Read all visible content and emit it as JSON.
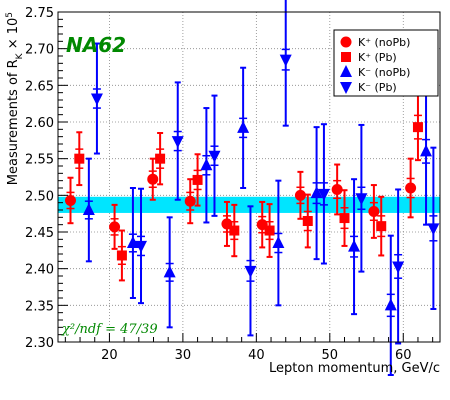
{
  "chart_data": {
    "type": "scatter",
    "title": "",
    "experiment_label": "NA62",
    "fit_label": "χ²/ndf = 47/39",
    "xlabel": "Lepton momentum, GeV/c",
    "ylabel": "Measurements of R_K × 10^5",
    "xlim": [
      13,
      65
    ],
    "ylim": [
      2.3,
      2.75
    ],
    "xticks": [
      20,
      30,
      40,
      50,
      60
    ],
    "yticks": [
      2.3,
      2.35,
      2.4,
      2.45,
      2.5,
      2.55,
      2.6,
      2.65,
      2.7,
      2.75
    ],
    "grid": true,
    "legend_position": "top-right",
    "band": {
      "center": 2.487,
      "low": 2.476,
      "high": 2.498,
      "color": "#00e5ff"
    },
    "series": [
      {
        "name": "K⁺ (noPb)",
        "marker": "circle",
        "color": "#ff0000",
        "points": [
          {
            "x": 14.7,
            "y": 2.493,
            "stat": 0.031,
            "syst": 0.011
          },
          {
            "x": 20.7,
            "y": 2.457,
            "stat": 0.03,
            "syst": 0.011
          },
          {
            "x": 25.9,
            "y": 2.522,
            "stat": 0.028,
            "syst": 0.011
          },
          {
            "x": 31.0,
            "y": 2.492,
            "stat": 0.03,
            "syst": 0.012
          },
          {
            "x": 36.0,
            "y": 2.461,
            "stat": 0.03,
            "syst": 0.011
          },
          {
            "x": 40.8,
            "y": 2.46,
            "stat": 0.031,
            "syst": 0.011
          },
          {
            "x": 46.0,
            "y": 2.5,
            "stat": 0.032,
            "syst": 0.011
          },
          {
            "x": 51.0,
            "y": 2.508,
            "stat": 0.034,
            "syst": 0.012
          },
          {
            "x": 56.0,
            "y": 2.478,
            "stat": 0.036,
            "syst": 0.012
          },
          {
            "x": 61.0,
            "y": 2.51,
            "stat": 0.04,
            "syst": 0.013
          }
        ]
      },
      {
        "name": "K⁺ (Pb)",
        "marker": "square",
        "color": "#ff0000",
        "points": [
          {
            "x": 15.9,
            "y": 2.55,
            "stat": 0.036,
            "syst": 0.013
          },
          {
            "x": 21.7,
            "y": 2.418,
            "stat": 0.034,
            "syst": 0.012
          },
          {
            "x": 26.9,
            "y": 2.55,
            "stat": 0.035,
            "syst": 0.013
          },
          {
            "x": 32.0,
            "y": 2.521,
            "stat": 0.035,
            "syst": 0.013
          },
          {
            "x": 37.0,
            "y": 2.452,
            "stat": 0.035,
            "syst": 0.012
          },
          {
            "x": 41.8,
            "y": 2.452,
            "stat": 0.036,
            "syst": 0.012
          },
          {
            "x": 47.0,
            "y": 2.465,
            "stat": 0.036,
            "syst": 0.013
          },
          {
            "x": 52.0,
            "y": 2.469,
            "stat": 0.038,
            "syst": 0.014
          },
          {
            "x": 57.0,
            "y": 2.458,
            "stat": 0.04,
            "syst": 0.014
          },
          {
            "x": 62.0,
            "y": 2.593,
            "stat": 0.045,
            "syst": 0.016
          }
        ]
      },
      {
        "name": "K⁻ (noPb)",
        "marker": "triangle-up",
        "color": "#0000ff",
        "points": [
          {
            "x": 17.2,
            "y": 2.48,
            "stat": 0.07,
            "syst": 0.012
          },
          {
            "x": 23.2,
            "y": 2.435,
            "stat": 0.075,
            "syst": 0.012
          },
          {
            "x": 28.2,
            "y": 2.395,
            "stat": 0.075,
            "syst": 0.012
          },
          {
            "x": 33.2,
            "y": 2.541,
            "stat": 0.078,
            "syst": 0.013
          },
          {
            "x": 38.2,
            "y": 2.592,
            "stat": 0.082,
            "syst": 0.013
          },
          {
            "x": 43.0,
            "y": 2.435,
            "stat": 0.085,
            "syst": 0.013
          },
          {
            "x": 48.2,
            "y": 2.503,
            "stat": 0.09,
            "syst": 0.014
          },
          {
            "x": 53.3,
            "y": 2.43,
            "stat": 0.092,
            "syst": 0.014
          },
          {
            "x": 58.3,
            "y": 2.35,
            "stat": 0.095,
            "syst": 0.015
          },
          {
            "x": 63.1,
            "y": 2.56,
            "stat": 0.1,
            "syst": 0.016
          }
        ]
      },
      {
        "name": "K⁻ (Pb)",
        "marker": "triangle-down",
        "color": "#0000ff",
        "points": [
          {
            "x": 18.3,
            "y": 2.632,
            "stat": 0.075,
            "syst": 0.013
          },
          {
            "x": 24.3,
            "y": 2.431,
            "stat": 0.078,
            "syst": 0.013
          },
          {
            "x": 29.3,
            "y": 2.574,
            "stat": 0.08,
            "syst": 0.013
          },
          {
            "x": 34.3,
            "y": 2.554,
            "stat": 0.082,
            "syst": 0.013
          },
          {
            "x": 39.2,
            "y": 2.397,
            "stat": 0.088,
            "syst": 0.014
          },
          {
            "x": 44.0,
            "y": 2.685,
            "stat": 0.09,
            "syst": 0.014
          },
          {
            "x": 49.2,
            "y": 2.502,
            "stat": 0.095,
            "syst": 0.015
          },
          {
            "x": 54.3,
            "y": 2.496,
            "stat": 0.1,
            "syst": 0.015
          },
          {
            "x": 59.3,
            "y": 2.403,
            "stat": 0.105,
            "syst": 0.016
          },
          {
            "x": 64.1,
            "y": 2.455,
            "stat": 0.11,
            "syst": 0.017
          }
        ]
      }
    ]
  }
}
